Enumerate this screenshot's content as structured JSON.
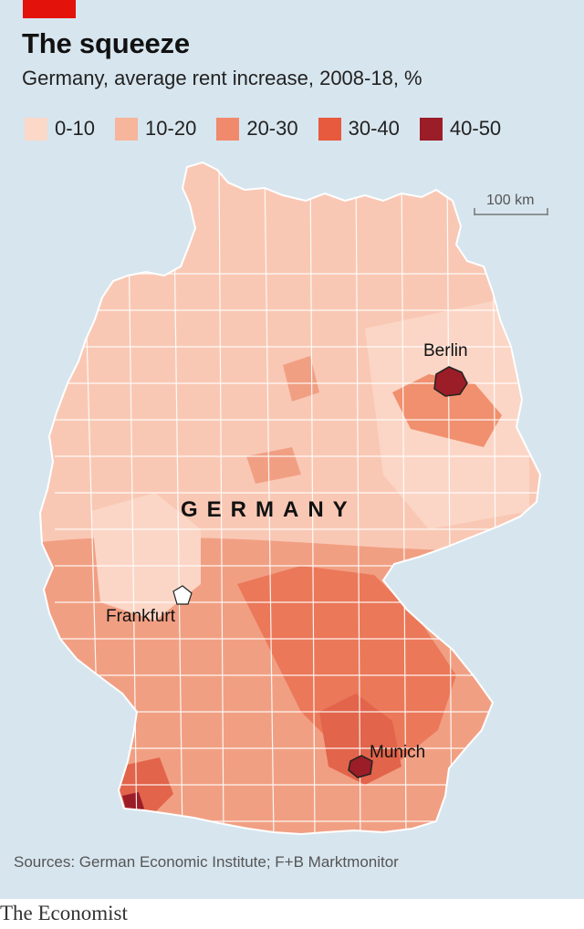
{
  "header": {
    "title": "The squeeze",
    "subtitle": "Germany, average rent increase, 2008-18, %"
  },
  "legend": [
    {
      "label": "0-10",
      "color": "#fbd8c8"
    },
    {
      "label": "10-20",
      "color": "#f7b59c"
    },
    {
      "label": "20-30",
      "color": "#f18a6c"
    },
    {
      "label": "30-40",
      "color": "#e75a3e"
    },
    {
      "label": "40-50",
      "color": "#9a1d28"
    }
  ],
  "map": {
    "country_label": "GERMANY",
    "scale_label": "100 km",
    "cities": [
      {
        "name": "Berlin",
        "category": "40-50"
      },
      {
        "name": "Frankfurt",
        "category": "0-10"
      },
      {
        "name": "Munich",
        "category": "40-50"
      }
    ],
    "colors": {
      "sea": "#d7e5ee",
      "border": "#ffffff"
    }
  },
  "footer": {
    "source": "Sources: German Economic Institute; F+B Marktmonitor",
    "brand": "The Economist"
  }
}
